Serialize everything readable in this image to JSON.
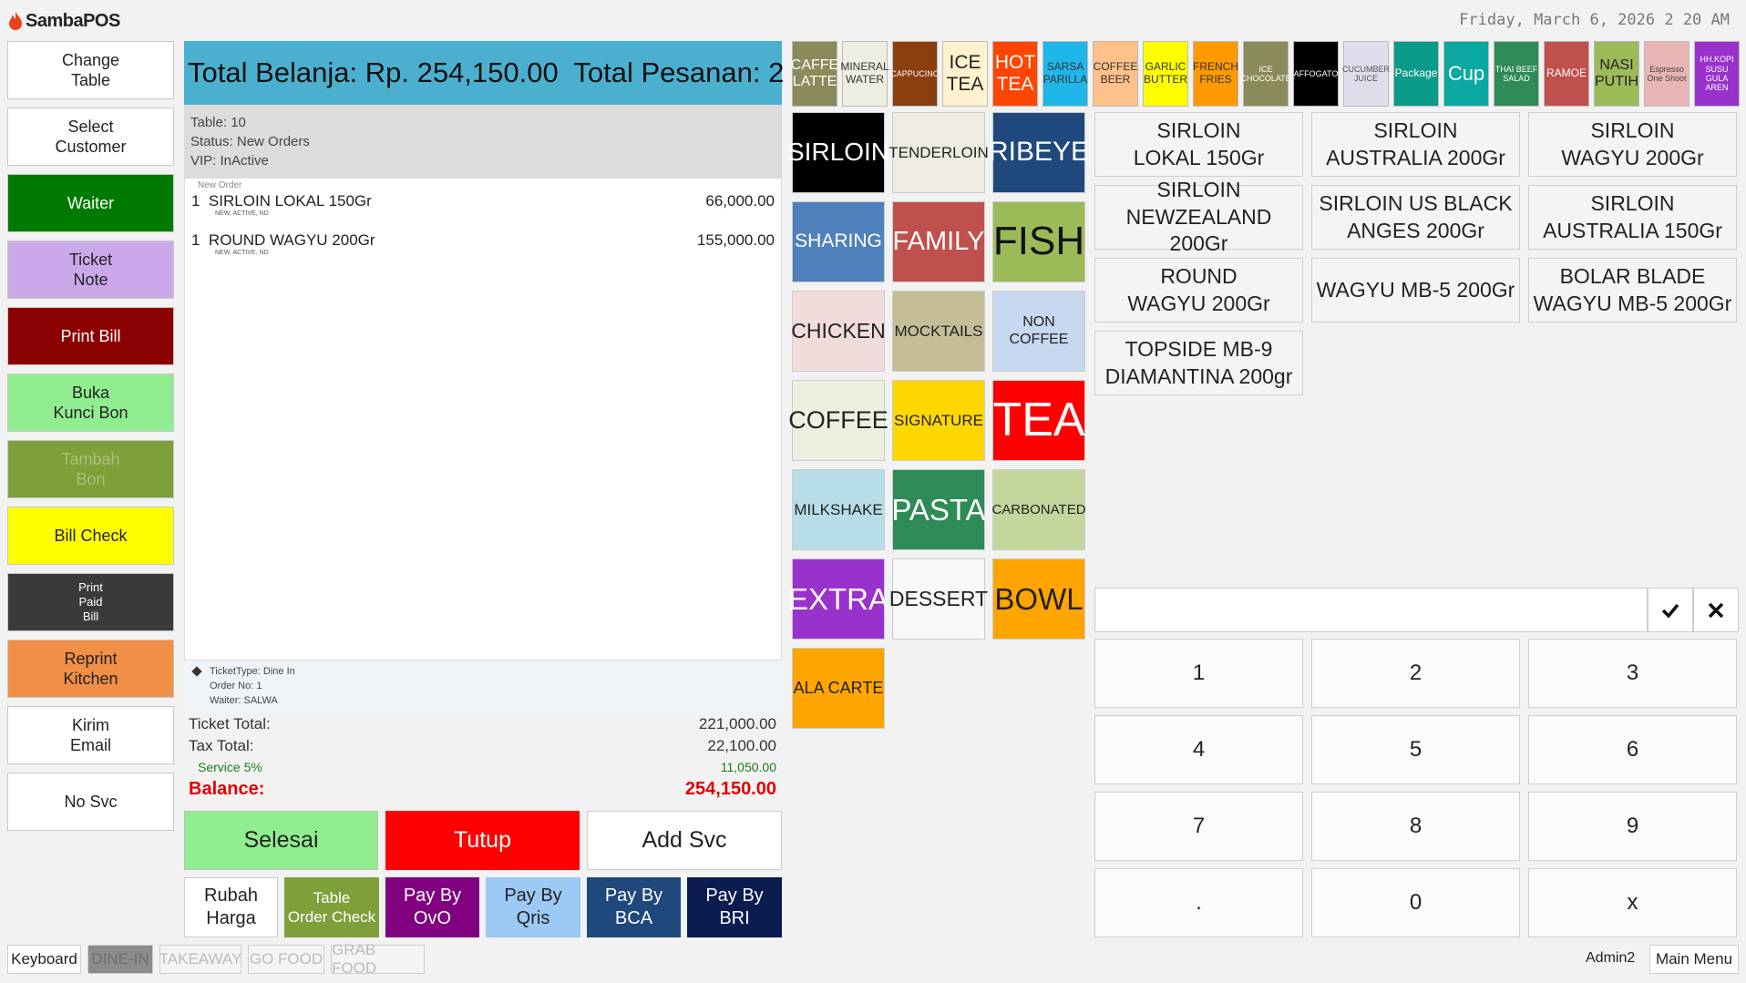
{
  "app": {
    "logo_text": "SambaPOS",
    "datetime": "Friday, March 6, 2026 2 20 AM"
  },
  "left_buttons": [
    {
      "label": "Change\nTable"
    },
    {
      "label": "Select\nCustomer"
    },
    {
      "label": "Waiter"
    },
    {
      "label": "Ticket\nNote"
    },
    {
      "label": "Print Bill"
    },
    {
      "label": "Buka\nKunci Bon"
    },
    {
      "label": "Tambah\nBon"
    },
    {
      "label": "Bill Check"
    },
    {
      "label": "Print\nPaid\nBill"
    },
    {
      "label": "Reprint\nKitchen"
    },
    {
      "label": "Kirim\nEmail"
    },
    {
      "label": "No Svc"
    }
  ],
  "ticket": {
    "header": "Total Belanja: Rp. 254,150.00  Total Pesanan: 2",
    "table": "Table: 10",
    "status": "Status: New Orders",
    "vip": "VIP: InActive",
    "section_label": "New Order",
    "orders": [
      {
        "qty": "1",
        "name": "SIRLOIN LOKAL 150Gr",
        "price": "66,000.00",
        "tags": "NEW, ACTIVE, ND"
      },
      {
        "qty": "1",
        "name": "ROUND WAGYU 200Gr",
        "price": "155,000.00",
        "tags": "NEW, ACTIVE, ND"
      }
    ],
    "ticket_type": "TicketType: Dine In",
    "order_no": "Order No: 1",
    "waiter": "Waiter: SALWA",
    "totals": {
      "ticket_total_label": "Ticket Total:",
      "ticket_total": "221,000.00",
      "tax_total_label": "Tax Total:",
      "tax_total": "22,100.00",
      "service_label": "Service 5%",
      "service": "11,050.00",
      "balance_label": "Balance:",
      "balance": "254,150.00"
    }
  },
  "actions": {
    "selesai": "Selesai",
    "tutup": "Tutup",
    "add_svc": "Add Svc",
    "rubah_harga": "Rubah\nHarga",
    "table_order_check": "Table\nOrder Check",
    "pay_ovo": "Pay By\nOvO",
    "pay_qris": "Pay By\nQris",
    "pay_bca": "Pay By\nBCA",
    "pay_bri": "Pay By\nBRI"
  },
  "top_categories": [
    {
      "label": "CAFFE\nLATTE",
      "bg": "#8a8a5a",
      "fg": "#ffffff"
    },
    {
      "label": "MINERAL\nWATER",
      "bg": "#eeeee0",
      "fg": "#333333"
    },
    {
      "label": "CAPPUCINO",
      "bg": "#8b3e0e",
      "fg": "#ffffff"
    },
    {
      "label": "ICE\nTEA",
      "bg": "#fff2cc",
      "fg": "#222222"
    },
    {
      "label": "HOT\nTEA",
      "bg": "#ff4500",
      "fg": "#ffffff"
    },
    {
      "label": "SARSA\nPARILLA",
      "bg": "#1fb7ea",
      "fg": "#333333"
    },
    {
      "label": "COFFEE\nBEER",
      "bg": "#ffc08a",
      "fg": "#333333"
    },
    {
      "label": "GARLIC\nBUTTER",
      "bg": "#ffff00",
      "fg": "#333333"
    },
    {
      "label": "FRENCH\nFRIES",
      "bg": "#ff9900",
      "fg": "#333333"
    },
    {
      "label": "ICE\nCHOCOLATE",
      "bg": "#8a8a5a",
      "fg": "#ffffff"
    },
    {
      "label": "AFFOGATO",
      "bg": "#000000",
      "fg": "#ffffff"
    },
    {
      "label": "CUCUMBER\nJUICE",
      "bg": "#e0dcec",
      "fg": "#555555"
    },
    {
      "label": "Package",
      "bg": "#0a9a8a",
      "fg": "#ffffff"
    },
    {
      "label": "Cup",
      "bg": "#0aa8a0",
      "fg": "#ffffff"
    },
    {
      "label": "THAI BEEF\nSALAD",
      "bg": "#2e8b57",
      "fg": "#ffffff"
    },
    {
      "label": "RAMOE",
      "bg": "#c0504d",
      "fg": "#ffffff"
    },
    {
      "label": "NASI\nPUTIH",
      "bg": "#9bbb59",
      "fg": "#222222"
    },
    {
      "label": "Espresso\nOne Shoot",
      "bg": "#e8b4b4",
      "fg": "#444444"
    },
    {
      "label": "HH.KOPI\nSUSU GULA\nAREN",
      "bg": "#9932cc",
      "fg": "#ffffff"
    }
  ],
  "categories": [
    {
      "label": "SIRLOIN",
      "bg": "#000000",
      "fg": "#ffffff",
      "size": 28
    },
    {
      "label": "TENDERLOIN",
      "bg": "#eeece1",
      "fg": "#222222",
      "size": 17
    },
    {
      "label": "RIBEYE",
      "bg": "#1f497d",
      "fg": "#ffffff",
      "size": 30
    },
    {
      "label": "SHARING",
      "bg": "#4f81bd",
      "fg": "#ffffff",
      "size": 21
    },
    {
      "label": "FAMILY",
      "bg": "#c0504d",
      "fg": "#ffffff",
      "size": 29
    },
    {
      "label": "FISH",
      "bg": "#9bbb59",
      "fg": "#111111",
      "size": 44
    },
    {
      "label": "CHICKEN",
      "bg": "#f2dcdb",
      "fg": "#222222",
      "size": 23
    },
    {
      "label": "MOCKTAILS",
      "bg": "#c4bd97",
      "fg": "#222222",
      "size": 17
    },
    {
      "label": "NON COFFEE",
      "bg": "#c6d9f1",
      "fg": "#222222",
      "size": 16
    },
    {
      "label": "COFFEE",
      "bg": "#ebf1de",
      "fg": "#222222",
      "size": 27
    },
    {
      "label": "SIGNATURE",
      "bg": "#ffd700",
      "fg": "#222222",
      "size": 17
    },
    {
      "label": "TEA",
      "bg": "#ff0000",
      "fg": "#ffffff",
      "size": 52
    },
    {
      "label": "MILKSHAKE",
      "bg": "#b7dde8",
      "fg": "#222222",
      "size": 17
    },
    {
      "label": "PASTA",
      "bg": "#2e8b57",
      "fg": "#ffffff",
      "size": 33
    },
    {
      "label": "CARBONATED",
      "bg": "#c3d69b",
      "fg": "#222222",
      "size": 15
    },
    {
      "label": "EXTRA",
      "bg": "#9932cc",
      "fg": "#ffffff",
      "size": 33
    },
    {
      "label": "DESSERT",
      "bg": "#f8f8f8",
      "fg": "#222222",
      "size": 23
    },
    {
      "label": "BOWL",
      "bg": "#ffa500",
      "fg": "#222222",
      "size": 33
    },
    {
      "label": "ALA CARTE",
      "bg": "#ffa500",
      "fg": "#222222",
      "size": 18
    }
  ],
  "menu_items": [
    {
      "label": "SIRLOIN\nLOKAL 150Gr"
    },
    {
      "label": "SIRLOIN\nAUSTRALIA 200Gr"
    },
    {
      "label": "SIRLOIN\nWAGYU 200Gr"
    },
    {
      "label": "SIRLOIN\nNEWZEALAND 200Gr"
    },
    {
      "label": "SIRLOIN US BLACK\nANGES 200Gr"
    },
    {
      "label": "SIRLOIN\nAUSTRALIA 150Gr"
    },
    {
      "label": "ROUND\nWAGYU 200Gr"
    },
    {
      "label": "WAGYU MB-5 200Gr"
    },
    {
      "label": "BOLAR BLADE\nWAGYU MB-5 200Gr"
    },
    {
      "label": "TOPSIDE MB-9\nDIAMANTINA 200gr"
    }
  ],
  "numpad": {
    "input_value": "",
    "keys": [
      "1",
      "2",
      "3",
      "4",
      "5",
      "6",
      "7",
      "8",
      "9",
      ".",
      "0",
      "x"
    ]
  },
  "bottom_bar": {
    "keyboard": "Keyboard",
    "tabs": [
      "DINE-IN",
      "TAKEAWAY",
      "GO FOOD",
      "GRAB FOOD"
    ],
    "user": "Admin2",
    "main_menu": "Main Menu"
  }
}
